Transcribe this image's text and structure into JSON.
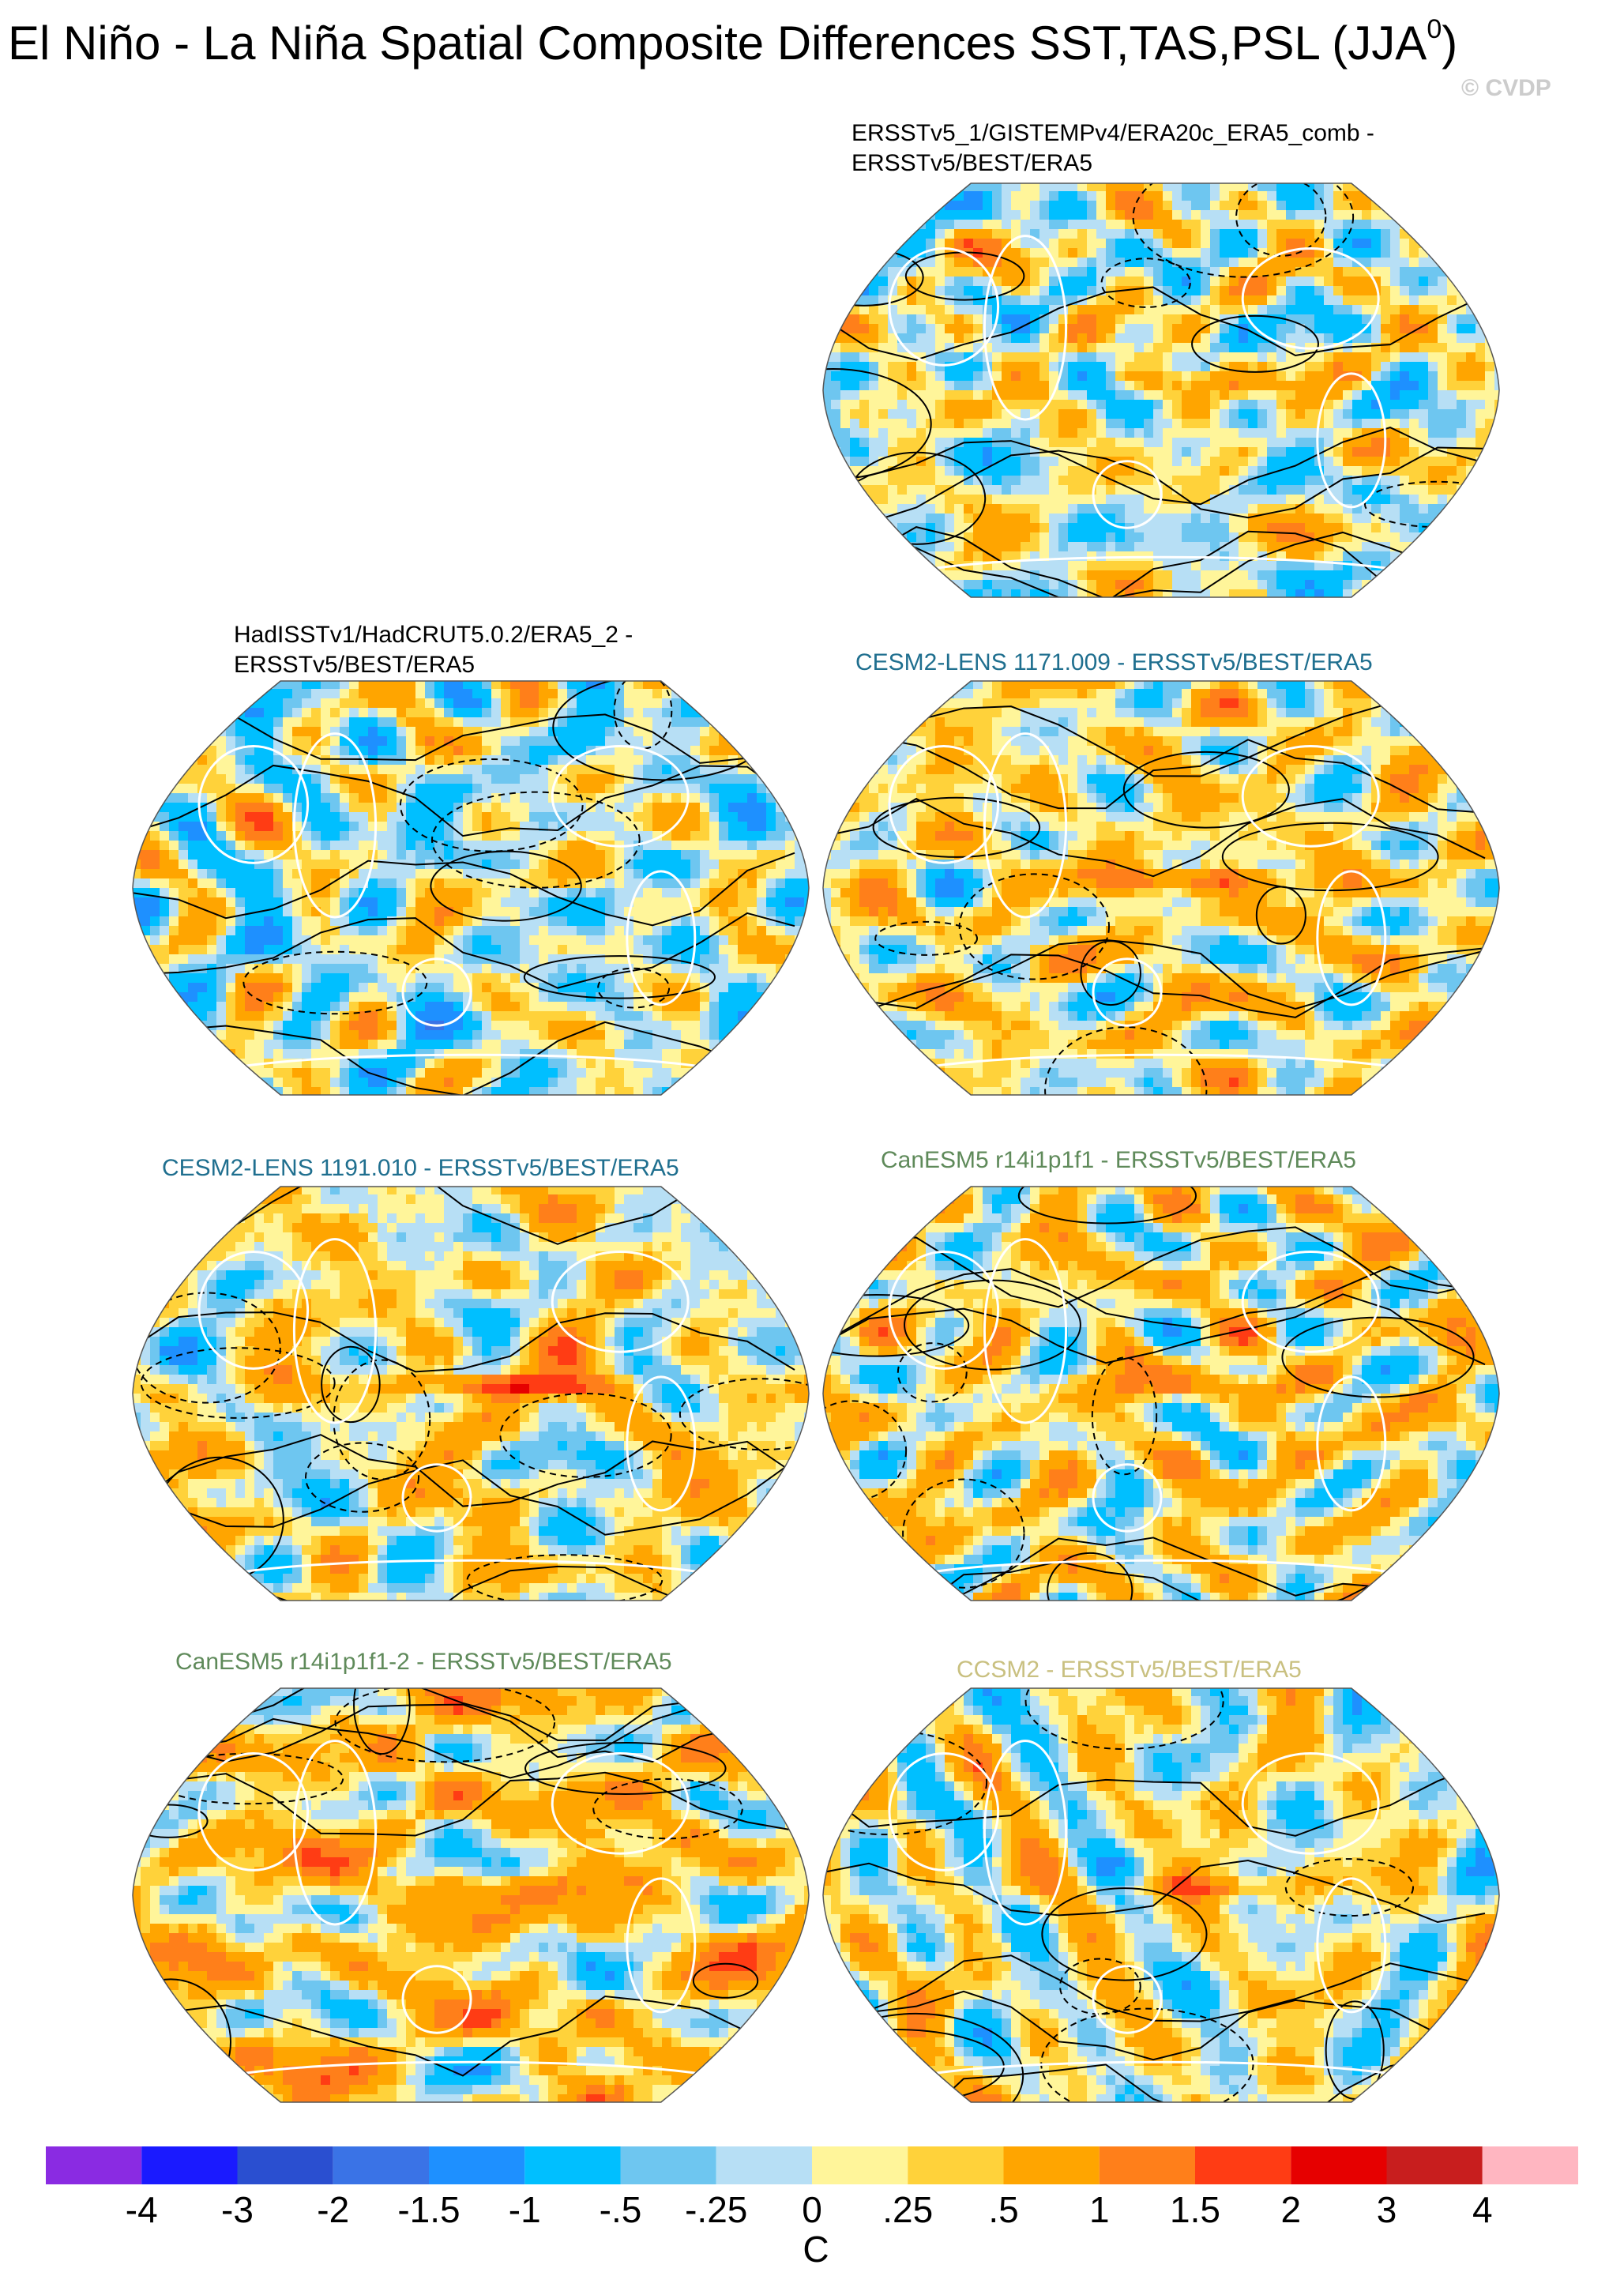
{
  "title": "El Niño - La Niña Spatial Composite Differences SST,TAS,PSL (JJA",
  "title_sup": "0",
  "title_close": ")",
  "watermark": "© CVDP",
  "panels": [
    {
      "title_lines": [
        "ERSSTv5_1/GISTEMPv4/ERA20c_ERA5_comb -",
        "ERSSTv5/BEST/ERA5"
      ],
      "title_color": "#000000",
      "seed": 11,
      "warm_bias": 0.05,
      "eq_strength": 0.3
    },
    {
      "title_lines": [
        "HadISSTv1/HadCRUT5.0.2/ERA5_2 -",
        "ERSSTv5/BEST/ERA5"
      ],
      "title_color": "#000000",
      "seed": 23,
      "warm_bias": -0.05,
      "eq_strength": 0.2
    },
    {
      "title_lines": [
        "CESM2-LENS 1171.009 - ERSSTv5/BEST/ERA5"
      ],
      "title_color": "#1f6f8f",
      "seed": 37,
      "warm_bias": 0.2,
      "eq_strength": 0.7
    },
    {
      "title_lines": [
        "CESM2-LENS 1191.010 - ERSSTv5/BEST/ERA5"
      ],
      "title_color": "#1f6f8f",
      "seed": 41,
      "warm_bias": 0.15,
      "eq_strength": 1.0
    },
    {
      "title_lines": [
        "CanESM5 r14i1p1f1 - ERSSTv5/BEST/ERA5"
      ],
      "title_color": "#5f8a5a",
      "seed": 53,
      "warm_bias": 0.2,
      "eq_strength": 0.4
    },
    {
      "title_lines": [
        "CanESM5 r14i1p1f1-2 - ERSSTv5/BEST/ERA5"
      ],
      "title_color": "#5f8a5a",
      "seed": 67,
      "warm_bias": 0.35,
      "eq_strength": 0.3
    },
    {
      "title_lines": [
        "CCSM2 - ERSSTv5/BEST/ERA5"
      ],
      "title_color": "#c9c080",
      "seed": 79,
      "warm_bias": 0.1,
      "eq_strength": 0.5
    }
  ],
  "colorbar": {
    "colors": [
      "#8a2be2",
      "#1a1aff",
      "#2a4fd0",
      "#3a73e6",
      "#1e90ff",
      "#00bfff",
      "#6ec6f0",
      "#b7dff5",
      "#fff59a",
      "#ffd23a",
      "#ffa500",
      "#ff7f1a",
      "#ff3c14",
      "#e60000",
      "#c81e1e",
      "#ffb6c1"
    ],
    "labels": [
      "-4",
      "-3",
      "-2",
      "-1.5",
      "-1",
      "-.5",
      "-.25",
      "0",
      ".25",
      ".5",
      "1",
      "1.5",
      "2",
      "3",
      "4"
    ],
    "units": "C"
  }
}
